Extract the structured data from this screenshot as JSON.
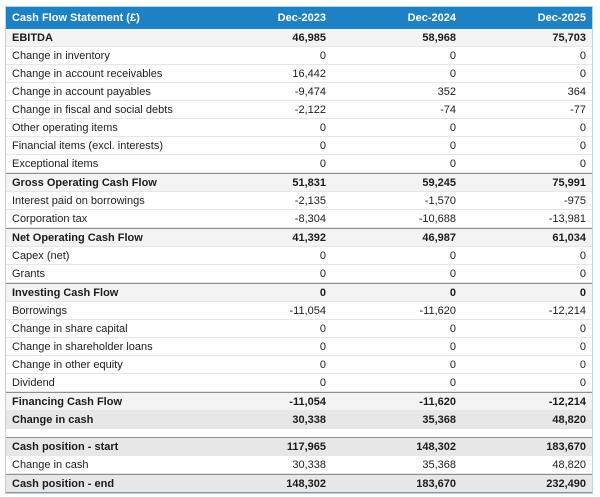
{
  "header": {
    "title": "Cash Flow Statement (£)",
    "columns": [
      "Dec-2023",
      "Dec-2024",
      "Dec-2025"
    ]
  },
  "colors": {
    "header_bg": "#1d81c4",
    "header_text": "#ffffff",
    "section_row_bg": "#f3f3f3",
    "total_row_bg": "#e7e7e7",
    "row_border": "#e6e6e6",
    "section_border": "#8f8f8f",
    "outer_border": "#b7d4ea"
  },
  "table": {
    "rows": [
      {
        "kind": "section",
        "label": "EBITDA",
        "values": [
          "46,985",
          "58,968",
          "75,703"
        ]
      },
      {
        "kind": "normal",
        "label": "Change in inventory",
        "values": [
          "0",
          "0",
          "0"
        ]
      },
      {
        "kind": "normal",
        "label": "Change in account receivables",
        "values": [
          "16,442",
          "0",
          "0"
        ]
      },
      {
        "kind": "normal",
        "label": "Change in account payables",
        "values": [
          "-9,474",
          "352",
          "364"
        ]
      },
      {
        "kind": "normal",
        "label": "Change in fiscal and social debts",
        "values": [
          "-2,122",
          "-74",
          "-77"
        ]
      },
      {
        "kind": "normal",
        "label": "Other operating items",
        "values": [
          "0",
          "0",
          "0"
        ]
      },
      {
        "kind": "normal",
        "label": "Financial items (excl. interests)",
        "values": [
          "0",
          "0",
          "0"
        ]
      },
      {
        "kind": "normal",
        "label": "Exceptional items",
        "values": [
          "0",
          "0",
          "0"
        ]
      },
      {
        "kind": "section-top",
        "label": "Gross Operating Cash Flow",
        "values": [
          "51,831",
          "59,245",
          "75,991"
        ]
      },
      {
        "kind": "normal",
        "label": "Interest paid on borrowings",
        "values": [
          "-2,135",
          "-1,570",
          "-975"
        ]
      },
      {
        "kind": "normal",
        "label": "Corporation tax",
        "values": [
          "-8,304",
          "-10,688",
          "-13,981"
        ]
      },
      {
        "kind": "section-top",
        "label": "Net Operating Cash Flow",
        "values": [
          "41,392",
          "46,987",
          "61,034"
        ]
      },
      {
        "kind": "normal",
        "label": "Capex (net)",
        "values": [
          "0",
          "0",
          "0"
        ]
      },
      {
        "kind": "normal",
        "label": "Grants",
        "values": [
          "0",
          "0",
          "0"
        ]
      },
      {
        "kind": "section-top",
        "label": "Investing Cash Flow",
        "values": [
          "0",
          "0",
          "0"
        ]
      },
      {
        "kind": "normal",
        "label": "Borrowings",
        "values": [
          "-11,054",
          "-11,620",
          "-12,214"
        ]
      },
      {
        "kind": "normal",
        "label": "Change in share capital",
        "values": [
          "0",
          "0",
          "0"
        ]
      },
      {
        "kind": "normal",
        "label": "Change in shareholder loans",
        "values": [
          "0",
          "0",
          "0"
        ]
      },
      {
        "kind": "normal",
        "label": "Change in other equity",
        "values": [
          "0",
          "0",
          "0"
        ]
      },
      {
        "kind": "normal",
        "label": "Dividend",
        "values": [
          "0",
          "0",
          "0"
        ]
      },
      {
        "kind": "section-top",
        "label": "Financing Cash Flow",
        "values": [
          "-11,054",
          "-11,620",
          "-12,214"
        ]
      },
      {
        "kind": "total",
        "label": "Change in cash",
        "values": [
          "30,338",
          "35,368",
          "48,820"
        ]
      },
      {
        "kind": "spacer",
        "label": "",
        "values": [
          "",
          "",
          ""
        ]
      },
      {
        "kind": "total-top",
        "label": "Cash position - start",
        "values": [
          "117,965",
          "148,302",
          "183,670"
        ]
      },
      {
        "kind": "normal",
        "label": "Change in cash",
        "values": [
          "30,338",
          "35,368",
          "48,820"
        ]
      },
      {
        "kind": "total-top-bottom",
        "label": "Cash position - end",
        "values": [
          "148,302",
          "183,670",
          "232,490"
        ]
      }
    ]
  },
  "chart_data": {
    "type": "table",
    "title": "Cash Flow Statement (£)",
    "columns": [
      "Dec-2023",
      "Dec-2024",
      "Dec-2025"
    ],
    "rows": [
      {
        "label": "EBITDA",
        "values": [
          46985,
          58968,
          75703
        ]
      },
      {
        "label": "Change in inventory",
        "values": [
          0,
          0,
          0
        ]
      },
      {
        "label": "Change in account receivables",
        "values": [
          16442,
          0,
          0
        ]
      },
      {
        "label": "Change in account payables",
        "values": [
          -9474,
          352,
          364
        ]
      },
      {
        "label": "Change in fiscal and social debts",
        "values": [
          -2122,
          -74,
          -77
        ]
      },
      {
        "label": "Other operating items",
        "values": [
          0,
          0,
          0
        ]
      },
      {
        "label": "Financial items (excl. interests)",
        "values": [
          0,
          0,
          0
        ]
      },
      {
        "label": "Exceptional items",
        "values": [
          0,
          0,
          0
        ]
      },
      {
        "label": "Gross Operating Cash Flow",
        "values": [
          51831,
          59245,
          75991
        ]
      },
      {
        "label": "Interest paid on borrowings",
        "values": [
          -2135,
          -1570,
          -975
        ]
      },
      {
        "label": "Corporation tax",
        "values": [
          -8304,
          -10688,
          -13981
        ]
      },
      {
        "label": "Net Operating Cash Flow",
        "values": [
          41392,
          46987,
          61034
        ]
      },
      {
        "label": "Capex (net)",
        "values": [
          0,
          0,
          0
        ]
      },
      {
        "label": "Grants",
        "values": [
          0,
          0,
          0
        ]
      },
      {
        "label": "Investing Cash Flow",
        "values": [
          0,
          0,
          0
        ]
      },
      {
        "label": "Borrowings",
        "values": [
          -11054,
          -11620,
          -12214
        ]
      },
      {
        "label": "Change in share capital",
        "values": [
          0,
          0,
          0
        ]
      },
      {
        "label": "Change in shareholder loans",
        "values": [
          0,
          0,
          0
        ]
      },
      {
        "label": "Change in other equity",
        "values": [
          0,
          0,
          0
        ]
      },
      {
        "label": "Dividend",
        "values": [
          0,
          0,
          0
        ]
      },
      {
        "label": "Financing Cash Flow",
        "values": [
          -11054,
          -11620,
          -12214
        ]
      },
      {
        "label": "Change in cash",
        "values": [
          30338,
          35368,
          48820
        ]
      },
      {
        "label": "Cash position - start",
        "values": [
          117965,
          148302,
          183670
        ]
      },
      {
        "label": "Change in cash",
        "values": [
          30338,
          35368,
          48820
        ]
      },
      {
        "label": "Cash position - end",
        "values": [
          148302,
          183670,
          232490
        ]
      }
    ]
  }
}
